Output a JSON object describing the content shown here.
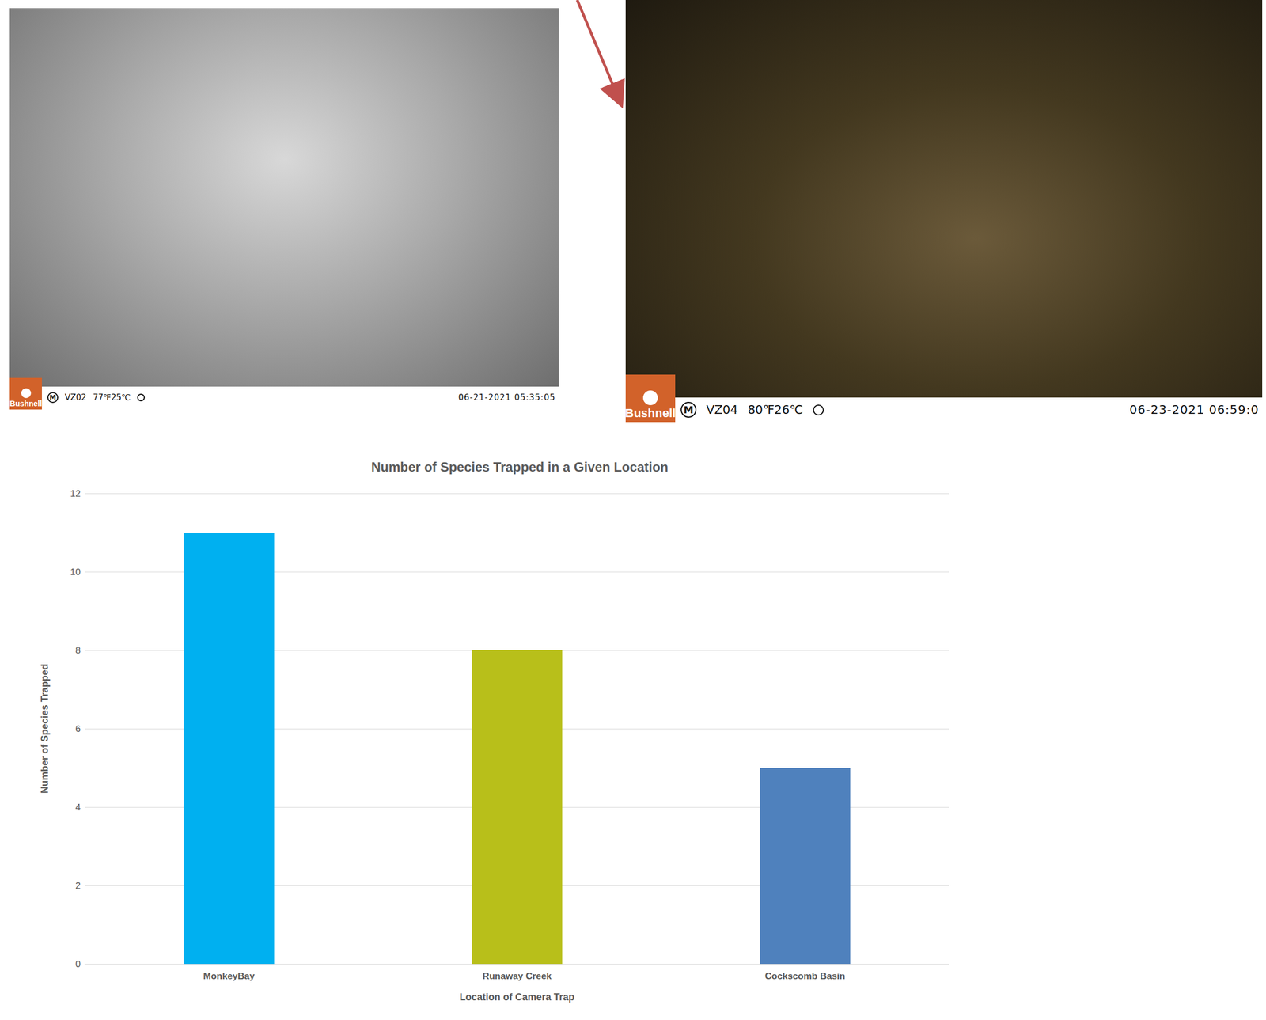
{
  "photos": [
    {
      "brand": "Bushnell",
      "mode": "M",
      "camera": "VZ02",
      "temperature": "77℉25℃",
      "timestamp": "06-21-2021 05:35:05"
    },
    {
      "brand": "Bushnell",
      "mode": "M",
      "camera": "VZ04",
      "temperature": "80℉26℃",
      "timestamp": "06-23-2021 06:59:0"
    }
  ],
  "chart_data": {
    "type": "bar",
    "title": "Number of Species Trapped in a Given Location",
    "x_label": "Location of Camera Trap",
    "y_label": "Number of Species Trapped",
    "categories": [
      "MonkeyBay",
      "Runaway Creek",
      "Cockscomb Basin"
    ],
    "values": [
      11,
      8,
      5
    ],
    "colors": [
      "#00b0f0",
      "#b8bf1a",
      "#4f81bd"
    ],
    "ylim": [
      0,
      12
    ],
    "yticks": [
      0,
      2,
      4,
      6,
      8,
      10,
      12
    ],
    "grid": true
  }
}
